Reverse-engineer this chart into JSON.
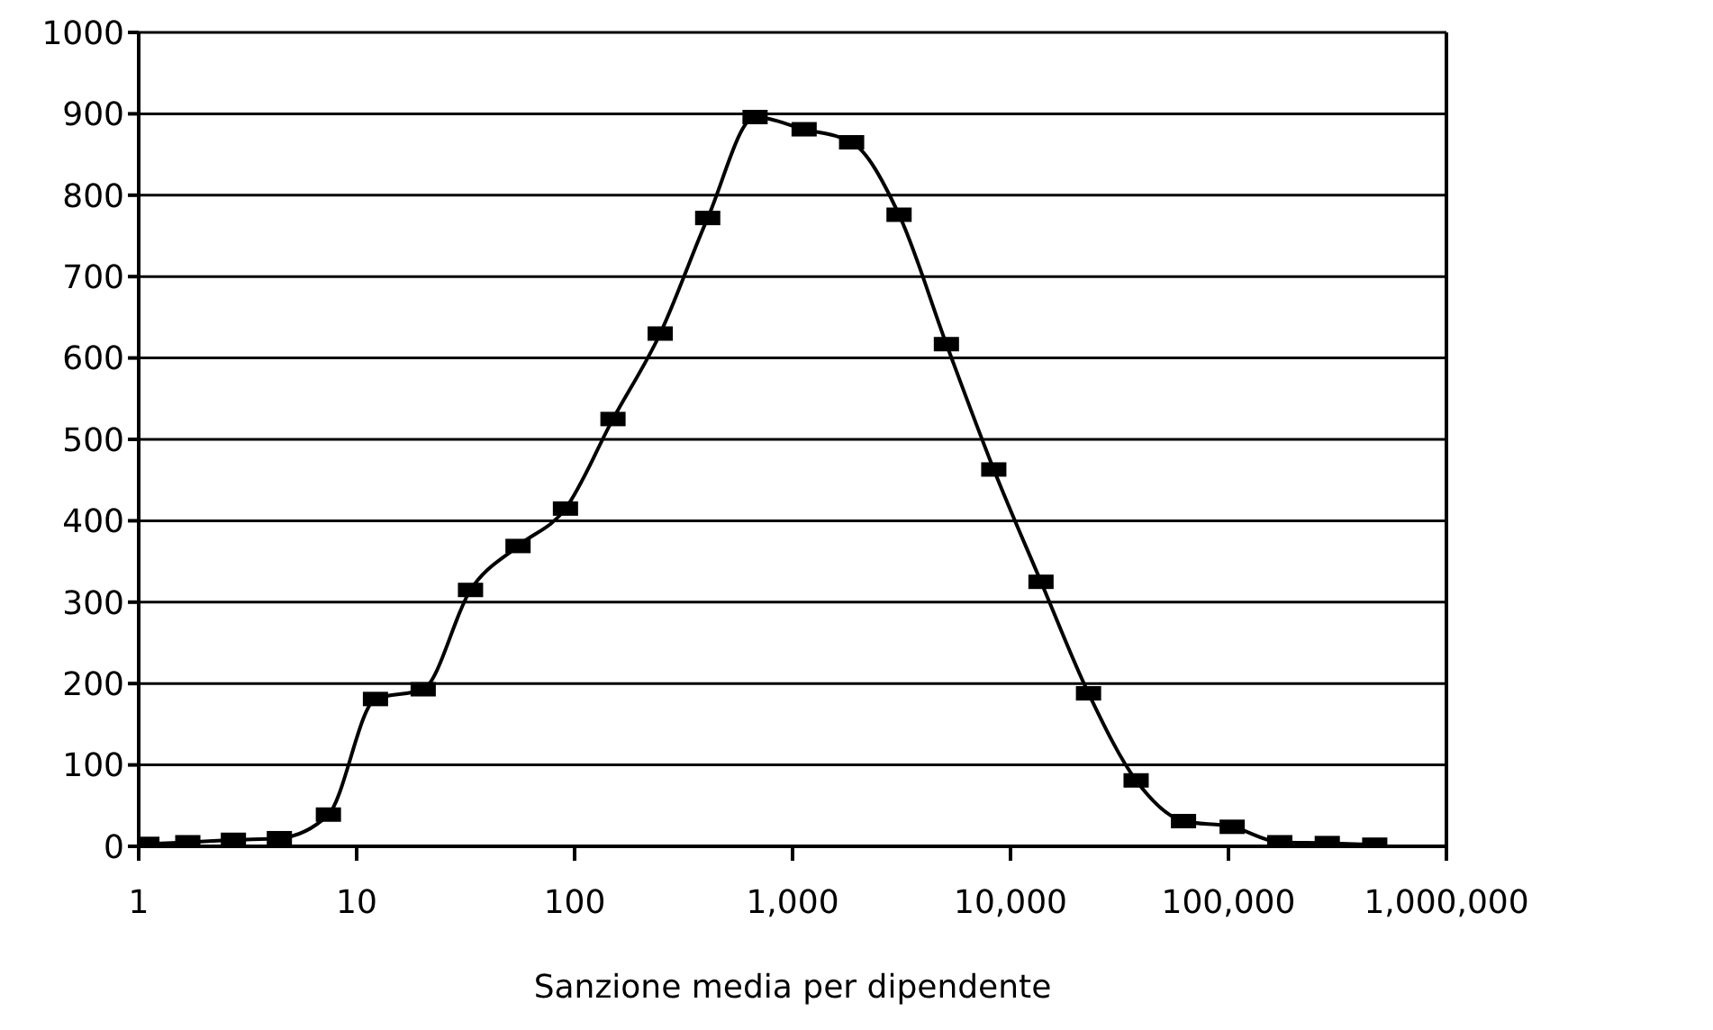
{
  "chart_data": {
    "type": "line",
    "xlabel": "Sanzione media per dipendente",
    "log": "x",
    "x": [
      1.09,
      1.68,
      2.72,
      4.42,
      7.42,
      12.2,
      20.2,
      33.3,
      55,
      90.8,
      150,
      247,
      408,
      673,
      1130,
      1866,
      3080,
      5080,
      8380,
      13800,
      22800,
      37700,
      62200,
      104000,
      172000,
      284000,
      469000
    ],
    "series": [
      {
        "color": "#000000",
        "values": [
          3,
          5,
          8,
          10,
          39,
          181,
          193,
          315,
          369,
          415,
          525,
          630,
          772,
          896,
          881,
          865,
          776,
          617,
          463,
          325,
          188,
          81,
          31,
          24,
          5,
          4,
          2
        ]
      }
    ],
    "xlim": [
      1,
      1000000
    ],
    "xticks": [
      {
        "value": 1,
        "label": "1"
      },
      {
        "value": 10,
        "label": "10"
      },
      {
        "value": 100,
        "label": "100"
      },
      {
        "value": 1000,
        "label": "1,000"
      },
      {
        "value": 10000,
        "label": "10,000"
      },
      {
        "value": 100000,
        "label": "100,000"
      },
      {
        "value": 1000000,
        "label": "1,000,000"
      }
    ],
    "ylim": [
      0,
      1000
    ],
    "yticks": [
      0,
      100,
      200,
      300,
      400,
      500,
      600,
      700,
      800,
      900,
      1000
    ],
    "grid": "y",
    "legend": false,
    "line_style": "solid",
    "marker": "square"
  }
}
